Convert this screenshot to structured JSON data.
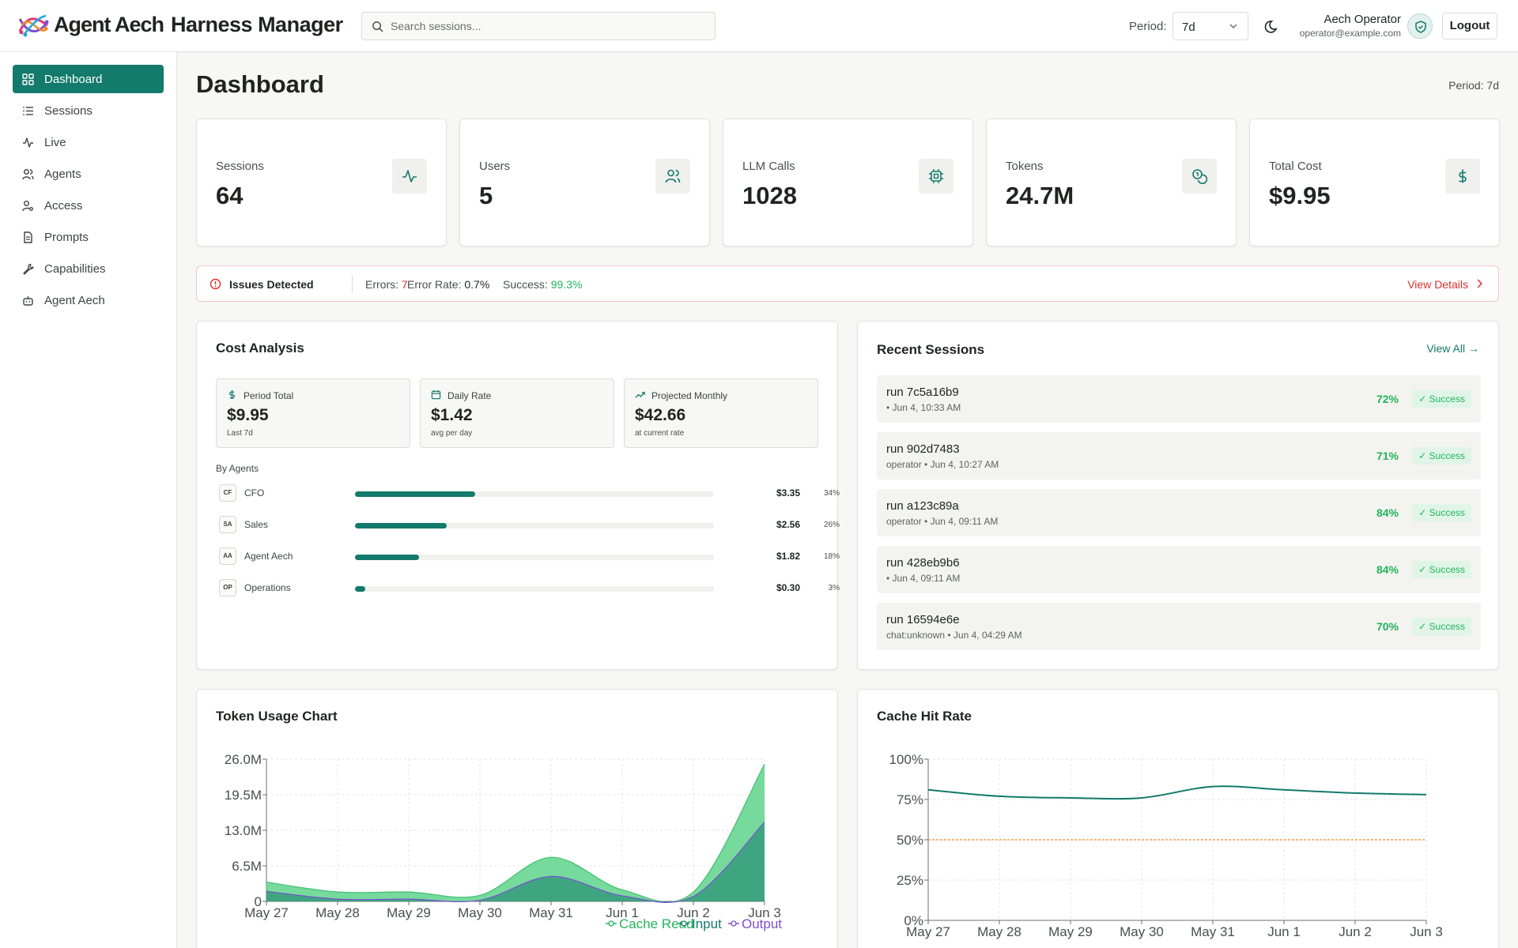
{
  "header": {
    "brand": "Agent Aech",
    "app_title": "Harness Manager",
    "search_placeholder": "Search sessions...",
    "period_label": "Period:",
    "period_value": "7d",
    "user_name": "Aech Operator",
    "user_email": "operator@example.com",
    "logout_label": "Logout"
  },
  "sidebar": {
    "items": [
      {
        "label": "Dashboard",
        "icon": "grid-icon",
        "active": true
      },
      {
        "label": "Sessions",
        "icon": "list-icon"
      },
      {
        "label": "Live",
        "icon": "activity-icon"
      },
      {
        "label": "Agents",
        "icon": "users-icon"
      },
      {
        "label": "Access",
        "icon": "user-key-icon"
      },
      {
        "label": "Prompts",
        "icon": "document-icon"
      },
      {
        "label": "Capabilities",
        "icon": "wrench-icon"
      },
      {
        "label": "Agent Aech",
        "icon": "bot-icon"
      }
    ]
  },
  "page": {
    "title": "Dashboard",
    "period_note": "Period: 7d"
  },
  "stats": [
    {
      "label": "Sessions",
      "value": "64",
      "icon": "activity-icon"
    },
    {
      "label": "Users",
      "value": "5",
      "icon": "users-icon"
    },
    {
      "label": "LLM Calls",
      "value": "1028",
      "icon": "cpu-icon"
    },
    {
      "label": "Tokens",
      "value": "24.7M",
      "icon": "coins-icon"
    },
    {
      "label": "Total Cost",
      "value": "$9.95",
      "icon": "dollar-icon"
    }
  ],
  "issues": {
    "title": "Issues Detected",
    "errors_label": "Errors:",
    "errors_value": "7",
    "error_rate_label": "Error Rate:",
    "error_rate_value": "0.7%",
    "success_label": "Success:",
    "success_value": "99.3%",
    "link_label": "View Details"
  },
  "cost_analysis": {
    "title": "Cost Analysis",
    "boxes": [
      {
        "label": "Period Total",
        "value": "$9.95",
        "sub": "Last 7d",
        "icon": "dollar-icon"
      },
      {
        "label": "Daily Rate",
        "value": "$1.42",
        "sub": "avg per day",
        "icon": "calendar-icon"
      },
      {
        "label": "Projected Monthly",
        "value": "$42.66",
        "sub": "at current rate",
        "icon": "trending-up-icon"
      }
    ],
    "by_agents_label": "By Agents",
    "agents": [
      {
        "badge": "CF",
        "name": "CFO",
        "cost": "$3.35",
        "pct_label": "34%",
        "share": 0.34
      },
      {
        "badge": "SA",
        "name": "Sales",
        "cost": "$2.56",
        "pct_label": "26%",
        "share": 0.26
      },
      {
        "badge": "AA",
        "name": "Agent Aech",
        "cost": "$1.82",
        "pct_label": "18%",
        "share": 0.18
      },
      {
        "badge": "OP",
        "name": "Operations",
        "cost": "$0.30",
        "pct_label": "3%",
        "share": 0.03
      }
    ]
  },
  "recent_sessions": {
    "title": "Recent Sessions",
    "view_all_label": "View All →",
    "rows": [
      {
        "name": "run 7c5a16b9",
        "meta": "• Jun 4, 10:33 AM",
        "pct": "72%",
        "status": "✓ Success"
      },
      {
        "name": "run 902d7483",
        "meta": "operator • Jun 4, 10:27 AM",
        "pct": "71%",
        "status": "✓ Success"
      },
      {
        "name": "run a123c89a",
        "meta": "operator • Jun 4, 09:11 AM",
        "pct": "84%",
        "status": "✓ Success"
      },
      {
        "name": "run 428eb9b6",
        "meta": "• Jun 4, 09:11 AM",
        "pct": "84%",
        "status": "✓ Success"
      },
      {
        "name": "run 16594e6e",
        "meta": "chat:unknown • Jun 4, 04:29 AM",
        "pct": "70%",
        "status": "✓ Success"
      }
    ]
  },
  "token_chart_title": "Token Usage Chart",
  "cache_chart_title": "Cache Hit Rate",
  "chart_data": [
    {
      "type": "area",
      "title": "Token Usage Chart",
      "categories": [
        "May 27",
        "May 28",
        "May 29",
        "May 30",
        "May 31",
        "Jun 1",
        "Jun 2",
        "Jun 3"
      ],
      "y_ticks": [
        "0",
        "6.5M",
        "13.0M",
        "19.5M",
        "26.0M"
      ],
      "ylim": [
        0,
        26000000
      ],
      "grid": true,
      "legend_position": "bottom",
      "stacked": true,
      "series": [
        {
          "name": "Cache Read",
          "color": "#5ed38b",
          "values": [
            1700000,
            1300000,
            1300000,
            900000,
            3500000,
            1100000,
            800000,
            10600000
          ]
        },
        {
          "name": "Input",
          "color": "#137a6c",
          "values": [
            1800000,
            400000,
            400000,
            200000,
            4500000,
            1000000,
            900000,
            14400000
          ]
        },
        {
          "name": "Output",
          "color": "#7c4dd4",
          "values": [
            30000,
            20000,
            20000,
            10000,
            60000,
            20000,
            20000,
            100000
          ]
        }
      ]
    },
    {
      "type": "line",
      "title": "Cache Hit Rate",
      "categories": [
        "May 27",
        "May 28",
        "May 29",
        "May 30",
        "May 31",
        "Jun 1",
        "Jun 2",
        "Jun 3"
      ],
      "y_ticks": [
        "0%",
        "25%",
        "50%",
        "75%",
        "100%"
      ],
      "ylim": [
        0,
        100
      ],
      "grid": true,
      "series": [
        {
          "name": "Cache Hit Rate",
          "color": "#137a6c",
          "values": [
            81,
            77,
            76,
            76,
            83,
            81,
            79,
            78
          ]
        }
      ],
      "reference_line": {
        "value": 50,
        "color": "#f0a04b"
      }
    }
  ]
}
